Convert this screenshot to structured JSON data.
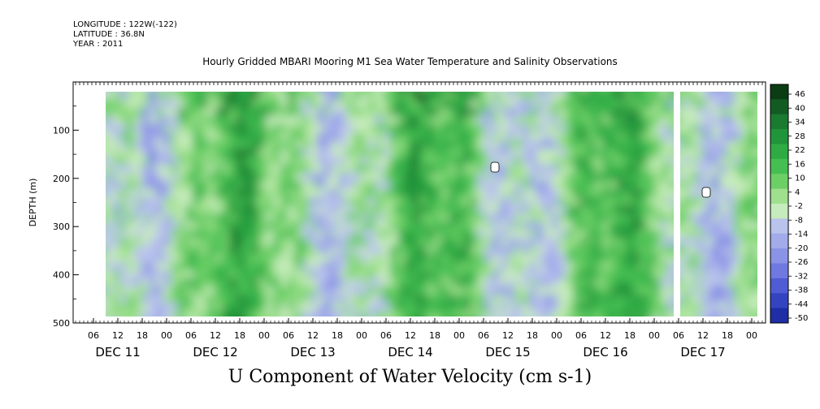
{
  "header": {
    "longitude": "LONGITUDE : 122W(-122)",
    "latitude": "LATITUDE : 36.8N",
    "year": "YEAR : 2011"
  },
  "chart_data": {
    "type": "heatmap",
    "title": "Hourly Gridded MBARI Mooring M1 Sea Water Temperature and Salinity Observations",
    "xlabel": "U Component of Water Velocity (cm s-1)",
    "ylabel": "DEPTH (m)",
    "yticks": [
      100,
      200,
      300,
      400,
      500
    ],
    "ylim": [
      500,
      0
    ],
    "hour_ticks": [
      "06",
      "12",
      "18",
      "00",
      "06",
      "12",
      "18",
      "00",
      "06",
      "12",
      "18",
      "00",
      "06",
      "12",
      "18",
      "00",
      "06",
      "12",
      "18",
      "00",
      "06",
      "12",
      "18",
      "00",
      "06",
      "12",
      "18",
      "00"
    ],
    "days": [
      "DEC 11",
      "DEC 12",
      "DEC 13",
      "DEC 14",
      "DEC 15",
      "DEC 16",
      "DEC 17"
    ],
    "colorbar": {
      "levels": [
        46,
        40,
        34,
        28,
        22,
        16,
        10,
        4,
        -2,
        -8,
        -14,
        -20,
        -26,
        -32,
        -38,
        -44,
        -50
      ]
    }
  }
}
